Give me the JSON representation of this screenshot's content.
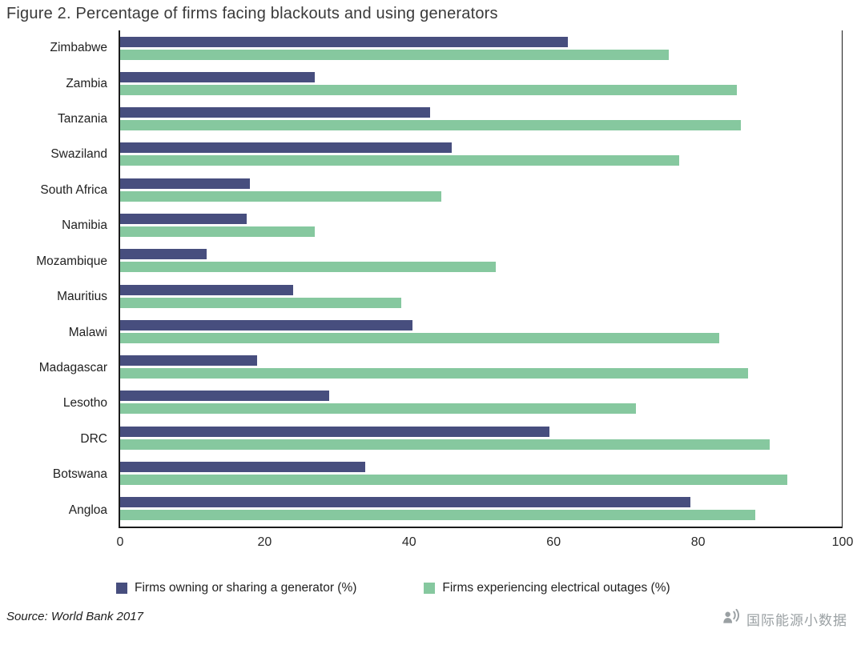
{
  "title": "Figure 2. Percentage of firms facing blackouts and using generators",
  "source": "Source: World Bank 2017",
  "watermark": {
    "text": "国际能源小数据",
    "icon": "broadcast-icon"
  },
  "colors": {
    "generator": "#474e7e",
    "outage": "#86c89f"
  },
  "chart_data": {
    "type": "bar",
    "orientation": "horizontal",
    "title": "Figure 2. Percentage of firms facing blackouts and using generators",
    "xlabel": "",
    "ylabel": "",
    "xlim": [
      0,
      100
    ],
    "xticks": [
      0,
      20,
      40,
      60,
      80,
      100
    ],
    "grid": false,
    "legend_position": "bottom",
    "categories": [
      "Zimbabwe",
      "Zambia",
      "Tanzania",
      "Swaziland",
      "South Africa",
      "Namibia",
      "Mozambique",
      "Mauritius",
      "Malawi",
      "Madagascar",
      "Lesotho",
      "DRC",
      "Botswana",
      "Angloa"
    ],
    "series": [
      {
        "name": "Firms owning or sharing a generator (%)",
        "color": "#474e7e",
        "values": [
          62,
          27,
          43,
          46,
          18,
          17.5,
          12,
          24,
          40.5,
          19,
          29,
          59.5,
          34,
          79
        ]
      },
      {
        "name": "Firms experiencing electrical outages (%)",
        "color": "#86c89f",
        "values": [
          76,
          85.5,
          86,
          77.5,
          44.5,
          27,
          52,
          39,
          83,
          87,
          71.5,
          90,
          92.5,
          88
        ]
      }
    ]
  }
}
